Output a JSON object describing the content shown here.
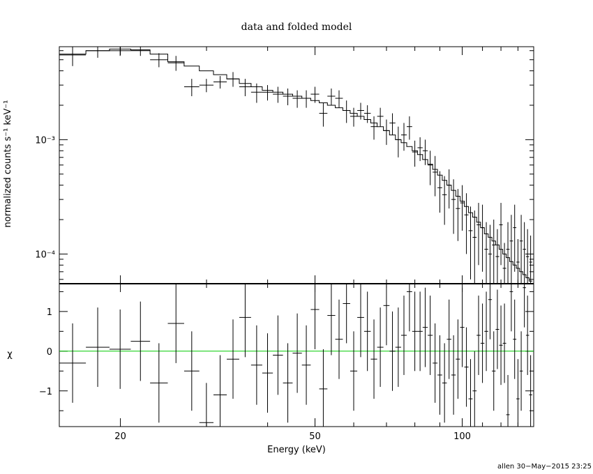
{
  "chart_data": [
    {
      "type": "line",
      "panel": "upper",
      "title": "data and folded model",
      "xlabel": "",
      "ylabel": "normalized counts s⁻¹ keV⁻¹",
      "x_scale": "log",
      "y_scale": "log",
      "xlim": [
        15,
        140
      ],
      "ylim": [
        5.5e-05,
        0.0065
      ],
      "y_ticks": [
        {
          "value": 0.001,
          "label": "10⁻³"
        },
        {
          "value": 0.0001,
          "label": "10⁻⁴"
        }
      ],
      "series": [
        {
          "kind": "data_points",
          "bins": [
            [
              15,
              17,
              0.0055,
              0.0011
            ],
            [
              17,
              19,
              0.006,
              0.0008
            ],
            [
              19,
              21,
              0.006,
              0.0006
            ],
            [
              21,
              23,
              0.006,
              0.0006
            ],
            [
              23,
              25,
              0.005,
              0.0007
            ],
            [
              25,
              27,
              0.0047,
              0.0007
            ],
            [
              27,
              29,
              0.0029,
              0.0005
            ],
            [
              29,
              31,
              0.003,
              0.0004
            ],
            [
              31,
              33,
              0.0032,
              0.0004
            ],
            [
              33,
              35,
              0.0034,
              0.0005
            ],
            [
              35,
              37,
              0.0029,
              0.0005
            ],
            [
              37,
              39,
              0.0026,
              0.0005
            ],
            [
              39,
              41,
              0.0026,
              0.0004
            ],
            [
              41,
              43,
              0.0025,
              0.0004
            ],
            [
              43,
              45,
              0.0024,
              0.0004
            ],
            [
              45,
              47,
              0.0023,
              0.0004
            ],
            [
              47,
              49,
              0.0023,
              0.0004
            ],
            [
              49,
              51,
              0.0025,
              0.0004
            ],
            [
              51,
              53,
              0.0017,
              0.0004
            ],
            [
              53,
              55,
              0.0024,
              0.0004
            ],
            [
              55,
              57,
              0.0023,
              0.0004
            ],
            [
              57,
              59,
              0.0018,
              0.0004
            ],
            [
              59,
              61,
              0.0016,
              0.0003
            ],
            [
              61,
              63,
              0.0018,
              0.0003
            ],
            [
              63,
              65,
              0.0017,
              0.0003
            ],
            [
              65,
              67,
              0.0013,
              0.0003
            ],
            [
              67,
              69,
              0.0016,
              0.0003
            ],
            [
              69,
              71,
              0.0012,
              0.0003
            ],
            [
              71,
              73,
              0.0014,
              0.0003
            ],
            [
              73,
              75,
              0.001,
              0.0003
            ],
            [
              75,
              77,
              0.0011,
              0.0003
            ],
            [
              77,
              79,
              0.0013,
              0.0003
            ],
            [
              79,
              81,
              0.00078,
              0.0002
            ],
            [
              81,
              83,
              0.00085,
              0.0002
            ],
            [
              83,
              85,
              0.0008,
              0.0002
            ],
            [
              85,
              87,
              0.0006,
              0.0002
            ],
            [
              87,
              89,
              0.00052,
              0.0002
            ],
            [
              89,
              91,
              0.00038,
              0.00015
            ],
            [
              91,
              93,
              0.00033,
              0.00015
            ],
            [
              93,
              95,
              0.0004,
              0.00015
            ],
            [
              95,
              97,
              0.0003,
              0.00015
            ],
            [
              97,
              99,
              0.00025,
              0.00012
            ],
            [
              99,
              101,
              0.00028,
              0.00012
            ],
            [
              101,
              103,
              0.00022,
              0.00012
            ],
            [
              103,
              105,
              0.00016,
              0.0001
            ],
            [
              105,
              107,
              0.00014,
              0.0001
            ],
            [
              107,
              109,
              0.00018,
              0.0001
            ],
            [
              109,
              111,
              0.00017,
              0.0001
            ],
            [
              111,
              113,
              0.00011,
              8e-05
            ],
            [
              113,
              115,
              0.0001,
              8e-05
            ],
            [
              115,
              117,
              0.00012,
              8e-05
            ],
            [
              117,
              119,
              9.5e-05,
              7e-05
            ],
            [
              119,
              121,
              0.00018,
              0.0001
            ],
            [
              121,
              123,
              7.5e-05,
              5e-05
            ],
            [
              123,
              125,
              0.00011,
              8e-05
            ],
            [
              125,
              127,
              0.00013,
              9e-05
            ],
            [
              127,
              129,
              0.00017,
              0.0001
            ],
            [
              129,
              131,
              8.5e-05,
              5e-05
            ],
            [
              131,
              133,
              0.00013,
              9e-05
            ],
            [
              133,
              135,
              0.00011,
              8e-05
            ],
            [
              135,
              137,
              9.5e-05,
              7e-05
            ],
            [
              137,
              139,
              8.5e-05,
              6e-05
            ]
          ]
        },
        {
          "kind": "model_step",
          "bins": [
            [
              15,
              17,
              0.0056
            ],
            [
              17,
              19,
              0.006
            ],
            [
              19,
              21,
              0.0062
            ],
            [
              21,
              23,
              0.0061
            ],
            [
              23,
              25,
              0.0056
            ],
            [
              25,
              27,
              0.0048
            ],
            [
              27,
              29,
              0.0044
            ],
            [
              29,
              31,
              0.004
            ],
            [
              31,
              33,
              0.0037
            ],
            [
              33,
              35,
              0.0034
            ],
            [
              35,
              37,
              0.0031
            ],
            [
              37,
              39,
              0.0029
            ],
            [
              39,
              41,
              0.0027
            ],
            [
              41,
              43,
              0.0026
            ],
            [
              43,
              45,
              0.0025
            ],
            [
              45,
              47,
              0.0024
            ],
            [
              47,
              49,
              0.0023
            ],
            [
              49,
              51,
              0.0022
            ],
            [
              51,
              53,
              0.0021
            ],
            [
              53,
              55,
              0.002
            ],
            [
              55,
              57,
              0.0019
            ],
            [
              57,
              59,
              0.0018
            ],
            [
              59,
              61,
              0.0017
            ],
            [
              61,
              63,
              0.0016
            ],
            [
              63,
              65,
              0.0015
            ],
            [
              65,
              67,
              0.0014
            ],
            [
              67,
              69,
              0.0013
            ],
            [
              69,
              71,
              0.0012
            ],
            [
              71,
              73,
              0.0011
            ],
            [
              73,
              75,
              0.001
            ],
            [
              75,
              77,
              0.00094
            ],
            [
              77,
              79,
              0.00087
            ],
            [
              79,
              81,
              0.0008
            ],
            [
              81,
              83,
              0.00074
            ],
            [
              83,
              85,
              0.00067
            ],
            [
              85,
              87,
              0.00061
            ],
            [
              87,
              89,
              0.00055
            ],
            [
              89,
              91,
              0.00049
            ],
            [
              91,
              93,
              0.00044
            ],
            [
              93,
              95,
              0.0004
            ],
            [
              95,
              97,
              0.00036
            ],
            [
              97,
              99,
              0.00032
            ],
            [
              99,
              101,
              0.00029
            ],
            [
              101,
              103,
              0.00026
            ],
            [
              103,
              105,
              0.00023
            ],
            [
              105,
              107,
              0.00021
            ],
            [
              107,
              109,
              0.00019
            ],
            [
              109,
              111,
              0.00017
            ],
            [
              111,
              113,
              0.00015
            ],
            [
              113,
              115,
              0.00014
            ],
            [
              115,
              117,
              0.00013
            ],
            [
              117,
              119,
              0.00012
            ],
            [
              119,
              121,
              0.00011
            ],
            [
              121,
              123,
              0.0001
            ],
            [
              123,
              125,
              9.3e-05
            ],
            [
              125,
              127,
              8.6e-05
            ],
            [
              127,
              129,
              8e-05
            ],
            [
              129,
              131,
              7.5e-05
            ],
            [
              131,
              133,
              7e-05
            ],
            [
              133,
              135,
              6.6e-05
            ],
            [
              135,
              137,
              6.2e-05
            ],
            [
              137,
              139,
              5.8e-05
            ]
          ]
        }
      ]
    },
    {
      "type": "scatter",
      "panel": "lower",
      "xlabel": "Energy (keV)",
      "ylabel": "χ",
      "x_scale": "log",
      "y_scale": "linear",
      "xlim": [
        15,
        140
      ],
      "ylim": [
        -1.9,
        1.7
      ],
      "x_ticks": [
        {
          "value": 20,
          "label": "20"
        },
        {
          "value": 50,
          "label": "50"
        },
        {
          "value": 100,
          "label": "100"
        }
      ],
      "y_ticks": [
        {
          "value": 1,
          "label": "1"
        },
        {
          "value": 0,
          "label": "0"
        },
        {
          "value": -1,
          "label": "−1"
        }
      ],
      "zero_line_color": "#00cc00",
      "residuals": [
        [
          15,
          17,
          -0.3
        ],
        [
          17,
          19,
          0.1
        ],
        [
          19,
          21,
          0.05
        ],
        [
          21,
          23,
          0.25
        ],
        [
          23,
          25,
          -0.8
        ],
        [
          25,
          27,
          0.7
        ],
        [
          27,
          29,
          -0.5
        ],
        [
          29,
          31,
          -1.8
        ],
        [
          31,
          33,
          -1.1
        ],
        [
          33,
          35,
          -0.2
        ],
        [
          35,
          37,
          0.85
        ],
        [
          37,
          39,
          -0.35
        ],
        [
          39,
          41,
          -0.55
        ],
        [
          41,
          43,
          -0.1
        ],
        [
          43,
          45,
          -0.8
        ],
        [
          45,
          47,
          -0.05
        ],
        [
          47,
          49,
          -0.35
        ],
        [
          49,
          51,
          1.05
        ],
        [
          51,
          53,
          -0.95
        ],
        [
          53,
          55,
          0.9
        ],
        [
          55,
          57,
          0.3
        ],
        [
          57,
          59,
          1.2
        ],
        [
          59,
          61,
          -0.5
        ],
        [
          61,
          63,
          0.85
        ],
        [
          63,
          65,
          0.5
        ],
        [
          65,
          67,
          -0.2
        ],
        [
          67,
          69,
          0.1
        ],
        [
          69,
          71,
          1.15
        ],
        [
          71,
          73,
          0.0
        ],
        [
          73,
          75,
          0.1
        ],
        [
          75,
          77,
          0.4
        ],
        [
          77,
          79,
          1.5
        ],
        [
          79,
          81,
          0.5
        ],
        [
          81,
          83,
          0.5
        ],
        [
          83,
          85,
          0.6
        ],
        [
          85,
          87,
          0.4
        ],
        [
          87,
          89,
          -0.3
        ],
        [
          89,
          91,
          -0.6
        ],
        [
          91,
          93,
          -0.8
        ],
        [
          93,
          95,
          0.3
        ],
        [
          95,
          97,
          -0.6
        ],
        [
          97,
          99,
          -0.2
        ],
        [
          99,
          101,
          0.6
        ],
        [
          101,
          103,
          -0.4
        ],
        [
          103,
          105,
          -1.2
        ],
        [
          105,
          107,
          -1.0
        ],
        [
          107,
          109,
          0.4
        ],
        [
          109,
          111,
          0.2
        ],
        [
          111,
          113,
          0.5
        ],
        [
          113,
          115,
          1.3
        ],
        [
          115,
          117,
          -0.5
        ],
        [
          117,
          119,
          0.55
        ],
        [
          119,
          121,
          0.15
        ],
        [
          121,
          123,
          0.2
        ],
        [
          123,
          125,
          -1.6
        ],
        [
          125,
          127,
          1.5
        ],
        [
          127,
          129,
          0.3
        ],
        [
          129,
          131,
          -1.2
        ],
        [
          131,
          133,
          -0.5
        ],
        [
          133,
          135,
          1.6
        ],
        [
          135,
          137,
          0.4
        ],
        [
          137,
          139,
          -1.1
        ]
      ]
    }
  ],
  "footer": {
    "stamp": "allen 30−May−2015 23:25"
  },
  "colors": {
    "axes": "#000000",
    "zero_line": "#00cc00",
    "background": "#ffffff"
  }
}
